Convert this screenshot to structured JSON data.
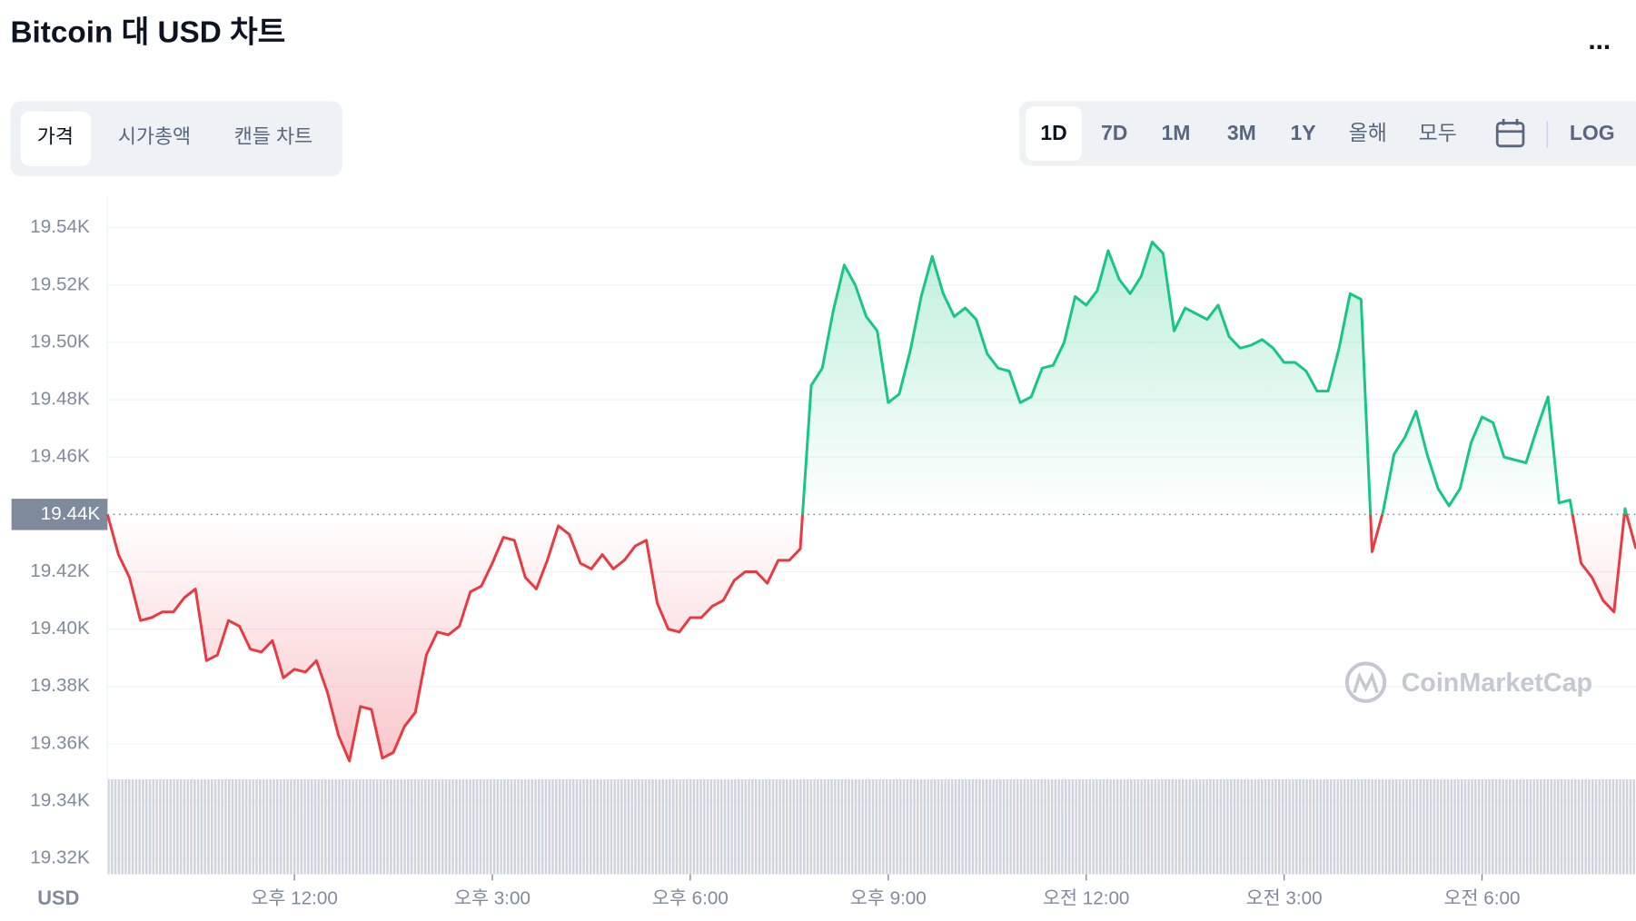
{
  "title": "Bitcoin 대 USD 차트",
  "menu": "...",
  "tabs": [
    "가격",
    "시가총액",
    "캔들 차트"
  ],
  "ranges": [
    "1D",
    "7D",
    "1M",
    "3M",
    "1Y",
    "올해",
    "모두"
  ],
  "log_button": "LOG",
  "chart_data": {
    "type": "line",
    "y_unit_label": "USD",
    "watermark": "CoinMarketCap",
    "categories": [
      null,
      null,
      null,
      null,
      null,
      null,
      null,
      null,
      null,
      null,
      null,
      null,
      null,
      null,
      null,
      null,
      null,
      "오후 12:00",
      null,
      null,
      null,
      null,
      null,
      null,
      null,
      null,
      null,
      null,
      null,
      null,
      null,
      null,
      null,
      null,
      null,
      "오후 3:00",
      null,
      null,
      null,
      null,
      null,
      null,
      null,
      null,
      null,
      null,
      null,
      null,
      null,
      null,
      null,
      null,
      null,
      "오후 6:00",
      null,
      null,
      null,
      null,
      null,
      null,
      null,
      null,
      null,
      null,
      null,
      null,
      null,
      null,
      null,
      null,
      null,
      "오후 9:00",
      null,
      null,
      null,
      null,
      null,
      null,
      null,
      null,
      null,
      null,
      null,
      null,
      null,
      null,
      null,
      null,
      null,
      "오전 12:00",
      null,
      null,
      null,
      null,
      null,
      null,
      null,
      null,
      null,
      null,
      null,
      null,
      null,
      null,
      null,
      null,
      null,
      "오전 3:00",
      null,
      null,
      null,
      null,
      null,
      null,
      null,
      null,
      null,
      null,
      null,
      null,
      null,
      null,
      null,
      null,
      null,
      "오전 6:00",
      null,
      null,
      null,
      null,
      null,
      null,
      null,
      null,
      null,
      null,
      null,
      null,
      null,
      null
    ],
    "values": [
      19.44,
      19.426,
      19.418,
      19.403,
      19.404,
      19.406,
      19.406,
      19.411,
      19.414,
      19.389,
      19.391,
      19.403,
      19.401,
      19.393,
      19.392,
      19.396,
      19.383,
      19.386,
      19.385,
      19.389,
      19.378,
      19.363,
      19.354,
      19.373,
      19.372,
      19.355,
      19.357,
      19.366,
      19.371,
      19.391,
      19.399,
      19.398,
      19.401,
      19.413,
      19.415,
      19.423,
      19.432,
      19.431,
      19.418,
      19.414,
      19.424,
      19.436,
      19.433,
      19.423,
      19.421,
      19.426,
      19.421,
      19.424,
      19.429,
      19.431,
      19.409,
      19.4,
      19.399,
      19.404,
      19.404,
      19.408,
      19.41,
      19.417,
      19.42,
      19.42,
      19.416,
      19.424,
      19.424,
      19.428,
      19.485,
      19.491,
      19.511,
      19.527,
      19.52,
      19.509,
      19.504,
      19.479,
      19.482,
      19.497,
      19.516,
      19.53,
      19.517,
      19.509,
      19.512,
      19.508,
      19.496,
      19.491,
      19.49,
      19.479,
      19.481,
      19.491,
      19.492,
      19.5,
      19.516,
      19.513,
      19.518,
      19.532,
      19.522,
      19.517,
      19.523,
      19.535,
      19.531,
      19.504,
      19.512,
      19.51,
      19.508,
      19.513,
      19.502,
      19.498,
      19.499,
      19.501,
      19.498,
      19.493,
      19.493,
      19.49,
      19.483,
      19.483,
      19.498,
      19.517,
      19.515,
      19.427,
      19.441,
      19.461,
      19.467,
      19.476,
      19.461,
      19.449,
      19.443,
      19.449,
      19.465,
      19.474,
      19.472,
      19.46,
      19.459,
      19.458,
      19.47,
      19.481,
      19.444,
      19.445,
      19.423,
      19.418,
      19.41,
      19.406,
      19.442,
      19.428
    ],
    "baseline": 19.44,
    "color_up": "#16c784",
    "color_down": "#ea3943",
    "ylim": [
      19.3145,
      19.551
    ],
    "yticks": [
      {
        "value": 19.32,
        "label": "19.32K"
      },
      {
        "value": 19.34,
        "label": "19.34K"
      },
      {
        "value": 19.36,
        "label": "19.36K"
      },
      {
        "value": 19.38,
        "label": "19.38K"
      },
      {
        "value": 19.4,
        "label": "19.40K"
      },
      {
        "value": 19.42,
        "label": "19.42K"
      },
      {
        "value": 19.44,
        "label": "19.44K"
      },
      {
        "value": 19.46,
        "label": "19.46K"
      },
      {
        "value": 19.48,
        "label": "19.48K"
      },
      {
        "value": 19.5,
        "label": "19.50K"
      },
      {
        "value": 19.52,
        "label": "19.52K"
      },
      {
        "value": 19.54,
        "label": "19.54K"
      }
    ],
    "grid": true
  }
}
